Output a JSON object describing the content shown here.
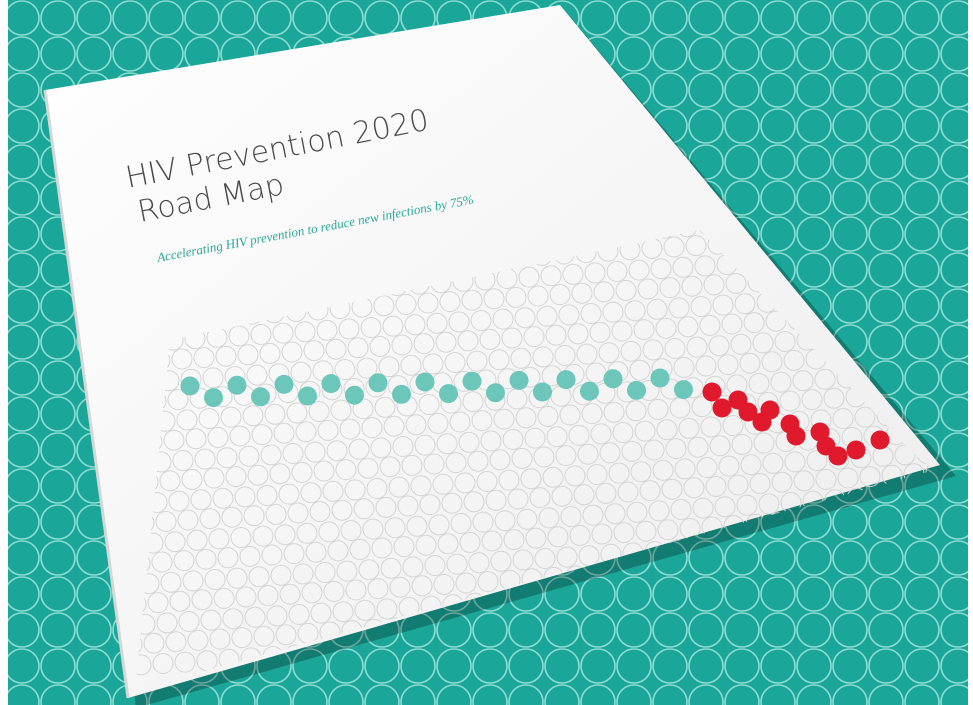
{
  "cover": {
    "title_line1": "HIV Prevention 2020",
    "title_line2": "Road Map",
    "subtitle": "Accelerating HIV prevention to reduce new infections by 75%"
  }
}
